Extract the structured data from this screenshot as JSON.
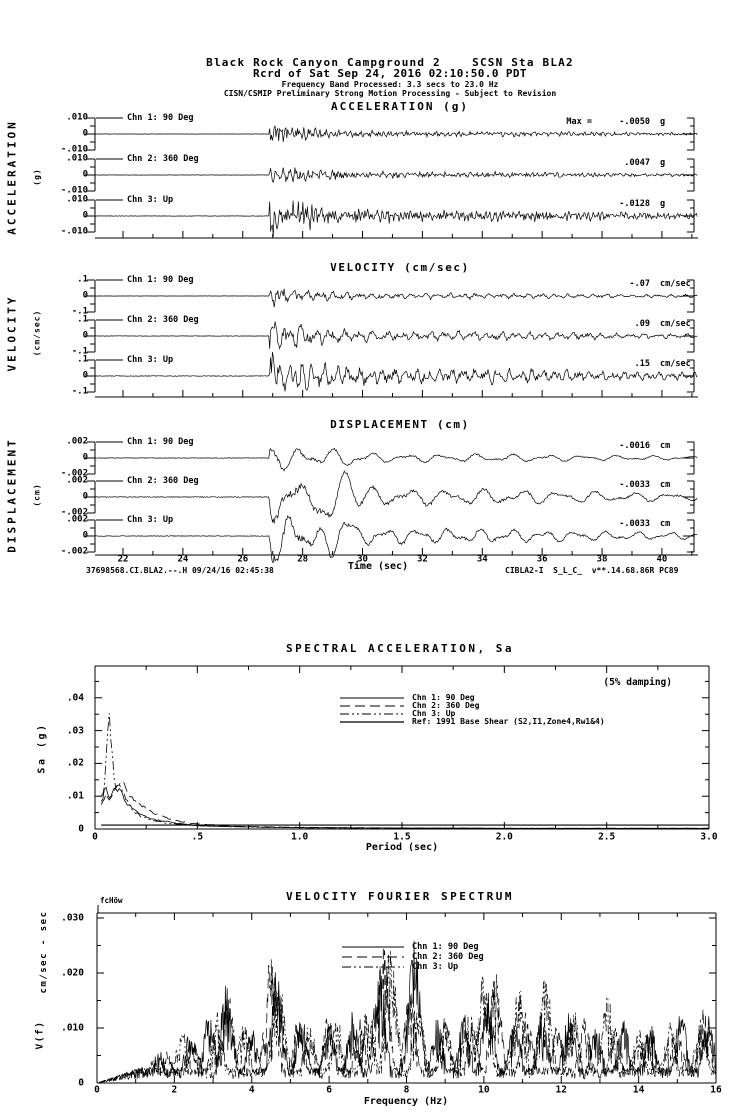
{
  "header": {
    "line1": "Black Rock Canyon Campground 2    SCSN Sta BLA2",
    "line2": "Rcrd of Sat Sep 24, 2016 02:10:50.0 PDT",
    "line3": "Frequency Band Processed: 3.3 secs to 23.0 Hz",
    "line4": "CISN/CSMIP Preliminary Strong Motion Processing - Subject to Revision"
  },
  "time_axis": {
    "label": "Time (sec)",
    "ticks": [
      "22",
      "24",
      "26",
      "28",
      "30",
      "32",
      "34",
      "36",
      "38",
      "40"
    ],
    "tick_values": [
      22,
      24,
      26,
      28,
      30,
      32,
      34,
      36,
      38,
      40
    ],
    "range": [
      21.05,
      41.2
    ]
  },
  "footer": {
    "left": "37698568.CI.BLA2.--.H 09/24/16 02:45:38",
    "right": "CIBLA2-I  S_L_C_  v**.14.68.86R PC89"
  },
  "chart_data": [
    {
      "id": "acceleration",
      "type": "line",
      "title": "ACCELERATION (g)",
      "side_label": "ACCELERATION",
      "side_unit": "(g)",
      "scale": {
        "top": ".010",
        "zero": "0",
        "bottom": "-.010",
        "value": 0.01
      },
      "x_range": [
        21.05,
        41.2
      ],
      "channels": [
        {
          "label": "Chn 1: 90 Deg",
          "max_prefix": "Max =",
          "max": "-.0050",
          "unit": "g",
          "peak": -0.005
        },
        {
          "label": "Chn 2: 360 Deg",
          "max": ".0047",
          "unit": "g",
          "peak": 0.0047
        },
        {
          "label": "Chn 3: Up",
          "max": "-.0128",
          "unit": "g",
          "peak": -0.0128
        }
      ]
    },
    {
      "id": "velocity",
      "type": "line",
      "title": "VELOCITY (cm/sec)",
      "side_label": "VELOCITY",
      "side_unit": "(cm/sec)",
      "scale": {
        "top": ".1",
        "zero": "0",
        "bottom": "-.1",
        "value": 0.1
      },
      "x_range": [
        21.05,
        41.2
      ],
      "channels": [
        {
          "label": "Chn 1: 90 Deg",
          "max": "-.07",
          "unit": "cm/sec",
          "peak": -0.07
        },
        {
          "label": "Chn 2: 360 Deg",
          "max": ".09",
          "unit": "cm/sec",
          "peak": 0.09
        },
        {
          "label": "Chn 3: Up",
          "max": ".15",
          "unit": "cm/sec",
          "peak": 0.15
        }
      ]
    },
    {
      "id": "displacement",
      "type": "line",
      "title": "DISPLACEMENT (cm)",
      "side_label": "DISPLACEMENT",
      "side_unit": "(cm)",
      "scale": {
        "top": ".002",
        "zero": "0",
        "bottom": "-.002",
        "value": 0.002
      },
      "x_range": [
        21.05,
        41.2
      ],
      "xlabel": "Time (sec)",
      "channels": [
        {
          "label": "Chn 1: 90 Deg",
          "max": "-.0016",
          "unit": "cm",
          "peak": -0.0016
        },
        {
          "label": "Chn 2: 360 Deg",
          "max": "-.0033",
          "unit": "cm",
          "peak": -0.0033
        },
        {
          "label": "Chn 3: Up",
          "max": "-.0033",
          "unit": "cm",
          "peak": -0.0033
        }
      ]
    },
    {
      "id": "spectral_acceleration",
      "type": "line",
      "title": "SPECTRAL ACCELERATION, Sa",
      "damping": "(5% damping)",
      "ylabel": "Sa (g)",
      "xlabel": "Period (sec)",
      "xlim": [
        0,
        3.0
      ],
      "ylim": [
        0,
        0.0497
      ],
      "xticks": [
        {
          "label": "0",
          "v": 0
        },
        {
          "label": ".5",
          "v": 0.5
        },
        {
          "label": "1.0",
          "v": 1.0
        },
        {
          "label": "1.5",
          "v": 1.5
        },
        {
          "label": "2.0",
          "v": 2.0
        },
        {
          "label": "2.5",
          "v": 2.5
        },
        {
          "label": "3.0",
          "v": 3.0
        }
      ],
      "yticks": [
        {
          "label": "0",
          "v": 0
        },
        {
          "label": ".01",
          "v": 0.01
        },
        {
          "label": ".02",
          "v": 0.02
        },
        {
          "label": ".03",
          "v": 0.03
        },
        {
          "label": ".04",
          "v": 0.04
        }
      ],
      "legend": [
        {
          "name": "Chn 1: 90 Deg",
          "dash": "solid"
        },
        {
          "name": "Chn 2: 360 Deg",
          "dash": "long"
        },
        {
          "name": "Chn 3: Up",
          "dash": "dashdotdot"
        },
        {
          "name": "Ref: 1991 Base Shear (S2,I1,Zone4,Rw1&4)",
          "dash": "solid"
        }
      ],
      "series": [
        {
          "name": "Chn 1: 90 Deg",
          "dash": "solid",
          "points": [
            [
              0.04,
              0.009
            ],
            [
              0.05,
              0.013
            ],
            [
              0.06,
              0.011
            ],
            [
              0.075,
              0.0095
            ],
            [
              0.09,
              0.012
            ],
            [
              0.105,
              0.0115
            ],
            [
              0.12,
              0.013
            ],
            [
              0.14,
              0.009
            ],
            [
              0.16,
              0.0075
            ],
            [
              0.19,
              0.006
            ],
            [
              0.22,
              0.0045
            ],
            [
              0.26,
              0.0035
            ],
            [
              0.3,
              0.0028
            ],
            [
              0.4,
              0.0018
            ],
            [
              0.5,
              0.001
            ],
            [
              0.7,
              0.0007
            ],
            [
              1.0,
              0.0004
            ],
            [
              1.5,
              0.0003
            ],
            [
              2.0,
              0.0002
            ],
            [
              3.0,
              0.0002
            ]
          ]
        },
        {
          "name": "Chn 2: 360 Deg",
          "dash": "long",
          "points": [
            [
              0.04,
              0.008
            ],
            [
              0.055,
              0.0105
            ],
            [
              0.07,
              0.009
            ],
            [
              0.085,
              0.0105
            ],
            [
              0.1,
              0.012
            ],
            [
              0.12,
              0.014
            ],
            [
              0.14,
              0.0135
            ],
            [
              0.17,
              0.01
            ],
            [
              0.2,
              0.008
            ],
            [
              0.24,
              0.0065
            ],
            [
              0.28,
              0.005
            ],
            [
              0.33,
              0.0038
            ],
            [
              0.4,
              0.0025
            ],
            [
              0.5,
              0.0015
            ],
            [
              0.7,
              0.0008
            ],
            [
              1.0,
              0.0005
            ],
            [
              1.5,
              0.0003
            ],
            [
              2.0,
              0.0002
            ],
            [
              3.0,
              0.0002
            ]
          ]
        },
        {
          "name": "Chn 3: Up",
          "dash": "dashdotdot",
          "points": [
            [
              0.04,
              0.011
            ],
            [
              0.05,
              0.016
            ],
            [
              0.06,
              0.028
            ],
            [
              0.068,
              0.036
            ],
            [
              0.078,
              0.027
            ],
            [
              0.09,
              0.018
            ],
            [
              0.1,
              0.013
            ],
            [
              0.115,
              0.0145
            ],
            [
              0.13,
              0.013
            ],
            [
              0.15,
              0.009
            ],
            [
              0.18,
              0.006
            ],
            [
              0.22,
              0.004
            ],
            [
              0.27,
              0.0028
            ],
            [
              0.35,
              0.0018
            ],
            [
              0.5,
              0.001
            ],
            [
              0.8,
              0.0005
            ],
            [
              1.2,
              0.0003
            ],
            [
              2.0,
              0.0002
            ],
            [
              3.0,
              0.0002
            ]
          ]
        },
        {
          "name": "Ref: 1991 Base Shear (S2,I1,Zone4,Rw1&4)",
          "dash": "solid",
          "points": [
            [
              0.03,
              0.0012
            ],
            [
              3.0,
              0.0012
            ]
          ]
        }
      ]
    },
    {
      "id": "velocity_fourier_spectrum",
      "type": "line",
      "title": "VELOCITY FOURIER SPECTRUM",
      "corner_label": "fcHöw",
      "ylabel_top": "cm/sec - sec",
      "ylabel_bottom": "V(f)",
      "xlabel": "Frequency (Hz)",
      "xlim": [
        0,
        16
      ],
      "ylim": [
        0,
        0.031
      ],
      "xticks": [
        {
          "label": "0",
          "v": 0
        },
        {
          "label": "2",
          "v": 2
        },
        {
          "label": "4",
          "v": 4
        },
        {
          "label": "6",
          "v": 6
        },
        {
          "label": "8",
          "v": 8
        },
        {
          "label": "10",
          "v": 10
        },
        {
          "label": "12",
          "v": 12
        },
        {
          "label": "14",
          "v": 14
        },
        {
          "label": "16",
          "v": 16
        }
      ],
      "yticks": [
        {
          "label": "0",
          "v": 0
        },
        {
          "label": ".010",
          "v": 0.01
        },
        {
          "label": ".020",
          "v": 0.02
        },
        {
          "label": ".030",
          "v": 0.03
        }
      ],
      "legend": [
        {
          "name": "Chn 1: 90 Deg",
          "dash": "solid"
        },
        {
          "name": "Chn 2: 360 Deg",
          "dash": "long"
        },
        {
          "name": "Chn 3: Up",
          "dash": "dashdotdot"
        }
      ],
      "series": [
        {
          "name": "Chn 1: 90 Deg",
          "dash": "solid",
          "seed": 7,
          "peaks": [
            [
              1.6,
              0.006
            ],
            [
              2.4,
              0.009
            ],
            [
              2.9,
              0.013
            ],
            [
              3.35,
              0.019
            ],
            [
              4.0,
              0.01
            ],
            [
              4.65,
              0.021
            ],
            [
              5.3,
              0.012
            ],
            [
              6.0,
              0.011
            ],
            [
              6.6,
              0.013
            ],
            [
              7.3,
              0.021
            ],
            [
              8.2,
              0.026
            ],
            [
              8.8,
              0.012
            ],
            [
              9.5,
              0.013
            ],
            [
              10.1,
              0.017
            ],
            [
              10.8,
              0.012
            ],
            [
              11.5,
              0.013
            ],
            [
              12.2,
              0.014
            ],
            [
              12.9,
              0.011
            ],
            [
              13.6,
              0.012
            ],
            [
              14.3,
              0.011
            ],
            [
              15.1,
              0.013
            ],
            [
              15.8,
              0.013
            ]
          ]
        },
        {
          "name": "Chn 2: 360 Deg",
          "dash": "long",
          "seed": 19,
          "peaks": [
            [
              1.8,
              0.006
            ],
            [
              2.5,
              0.008
            ],
            [
              3.4,
              0.016
            ],
            [
              4.5,
              0.026
            ],
            [
              5.2,
              0.012
            ],
            [
              6.0,
              0.013
            ],
            [
              6.8,
              0.012
            ],
            [
              7.4,
              0.026
            ],
            [
              8.1,
              0.017
            ],
            [
              9.0,
              0.012
            ],
            [
              9.7,
              0.011
            ],
            [
              10.3,
              0.02
            ],
            [
              11.1,
              0.013
            ],
            [
              11.9,
              0.011
            ],
            [
              12.6,
              0.012
            ],
            [
              13.4,
              0.01
            ],
            [
              14.2,
              0.009
            ],
            [
              15.0,
              0.011
            ],
            [
              15.7,
              0.014
            ]
          ]
        },
        {
          "name": "Chn 3: Up",
          "dash": "dashdotdot",
          "seed": 31,
          "peaks": [
            [
              1.5,
              0.005
            ],
            [
              2.2,
              0.01
            ],
            [
              3.1,
              0.013
            ],
            [
              3.8,
              0.011
            ],
            [
              4.7,
              0.02
            ],
            [
              5.5,
              0.011
            ],
            [
              6.2,
              0.012
            ],
            [
              7.0,
              0.015
            ],
            [
              7.6,
              0.026
            ],
            [
              8.3,
              0.016
            ],
            [
              9.0,
              0.012
            ],
            [
              9.6,
              0.014
            ],
            [
              10.0,
              0.022
            ],
            [
              10.9,
              0.018
            ],
            [
              11.6,
              0.021
            ],
            [
              12.3,
              0.014
            ],
            [
              13.2,
              0.016
            ],
            [
              14.0,
              0.01
            ],
            [
              14.8,
              0.011
            ],
            [
              15.6,
              0.012
            ]
          ]
        }
      ]
    }
  ]
}
